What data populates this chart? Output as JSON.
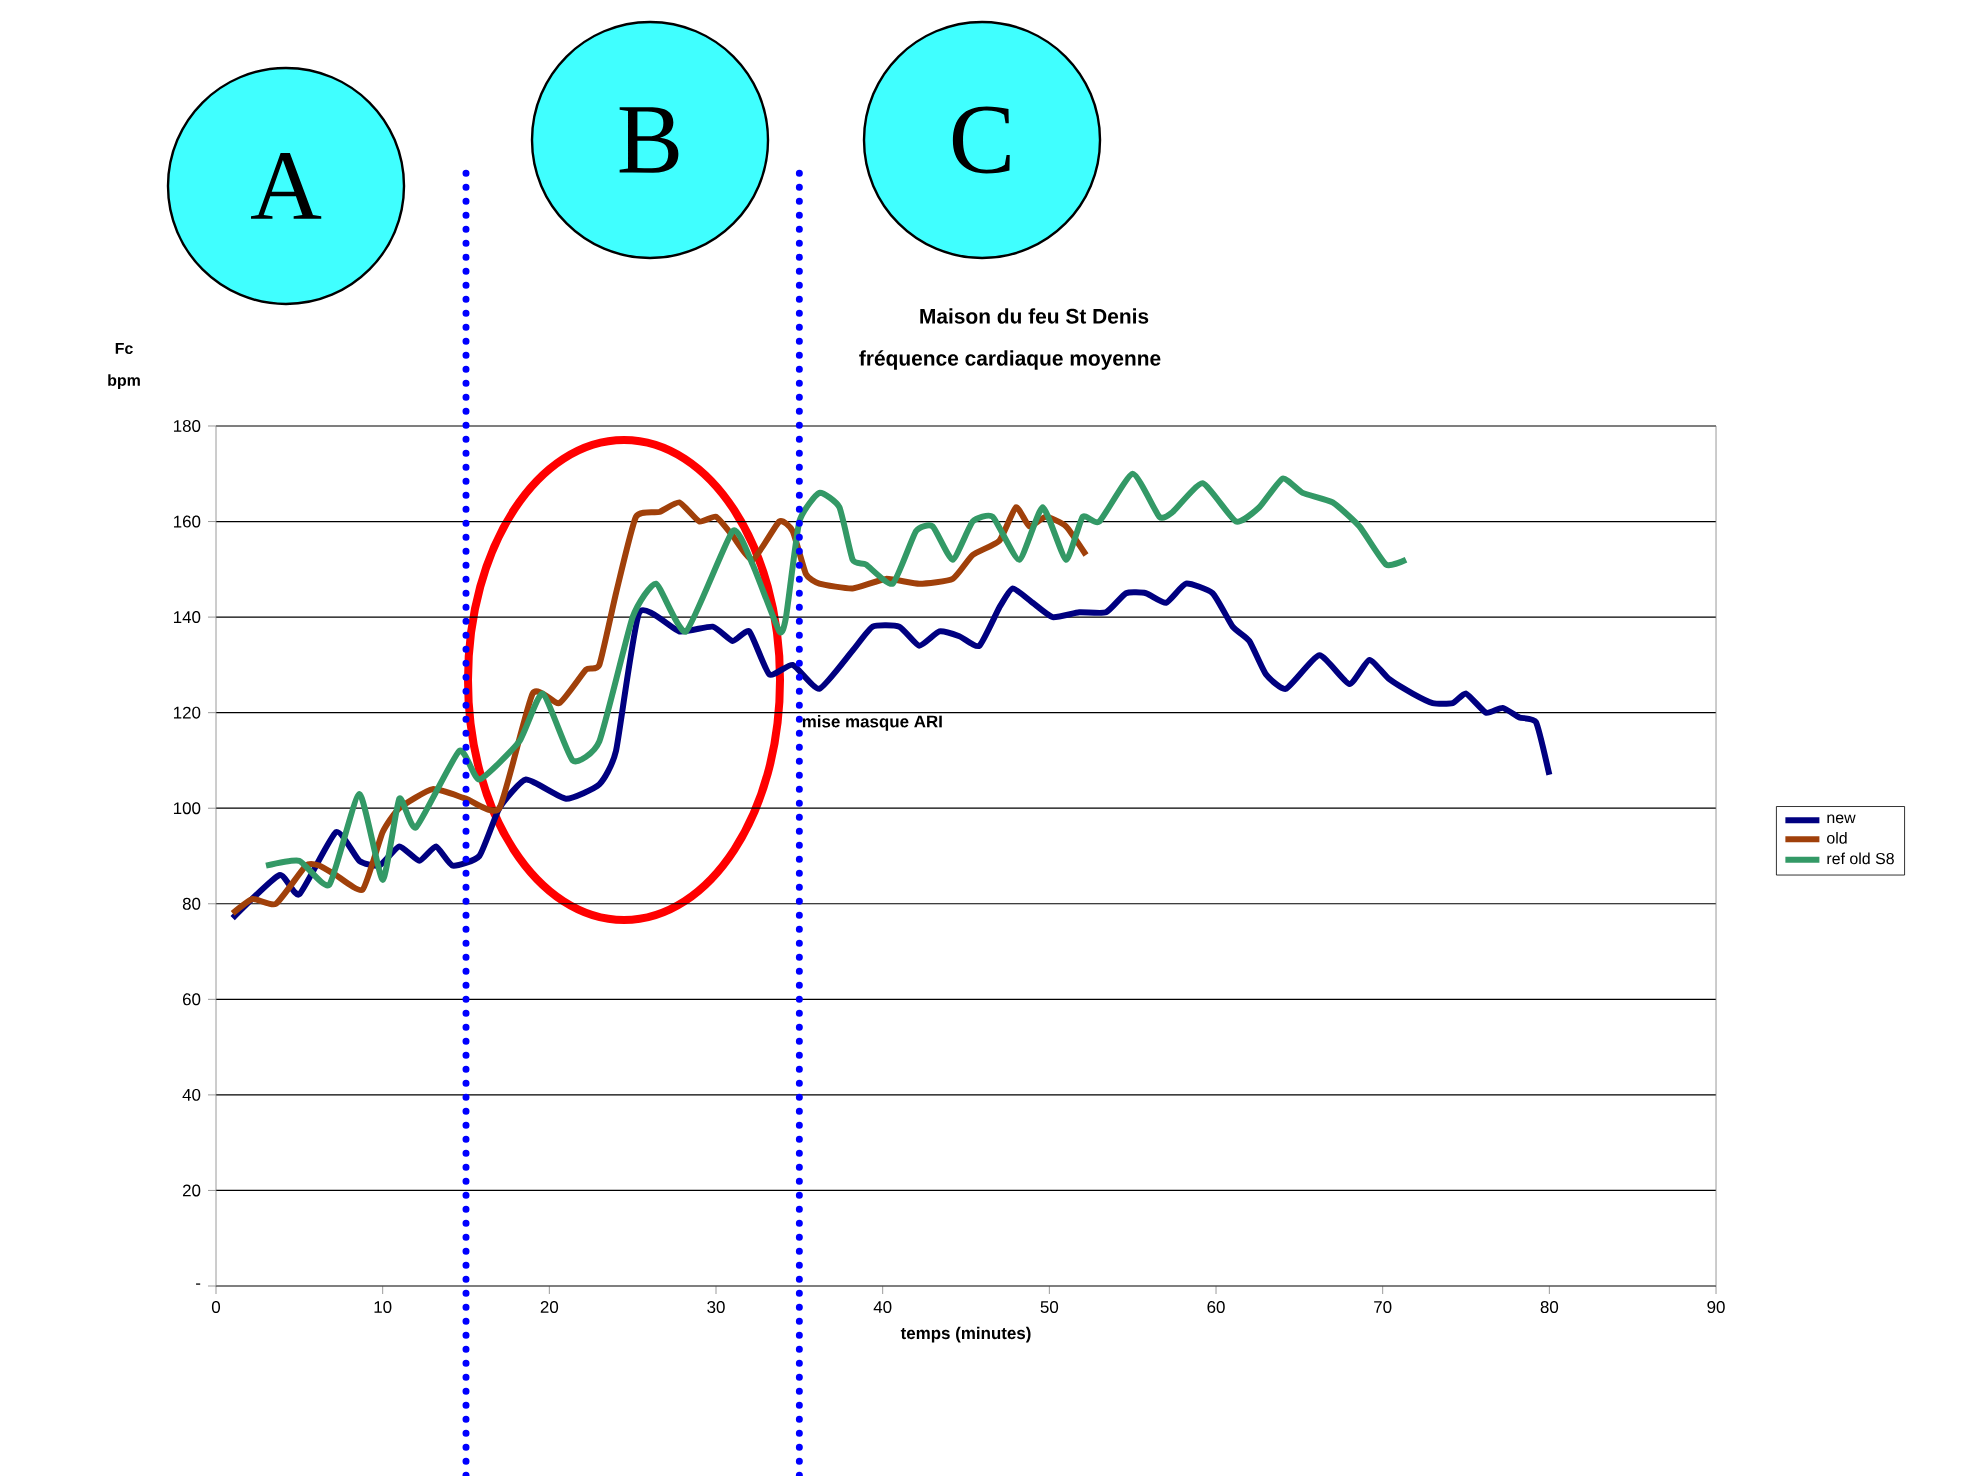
{
  "chart_data": {
    "type": "line",
    "title": "Maison du feu St Denis",
    "subtitle": "fréquence cardiaque moyenne",
    "xlabel": "temps (minutes)",
    "ylabel": "Fc bpm",
    "xlim": [
      0,
      90
    ],
    "xticks": [
      0,
      10,
      20,
      30,
      40,
      50,
      60,
      70,
      80,
      90
    ],
    "ylim": [
      0,
      180
    ],
    "yticks": [
      {
        "value": 0,
        "label": "-"
      },
      20,
      40,
      60,
      80,
      100,
      120,
      140,
      160,
      180
    ],
    "grid": "y",
    "legend": "right",
    "series": [
      {
        "name": "new",
        "color": "#000080",
        "x": [
          1,
          3.8,
          5,
          7.2,
          8.6,
          9.8,
          11,
          12.2,
          13.2,
          14.2,
          15.8,
          17,
          18.6,
          21,
          23,
          24,
          25.4,
          27.8,
          29.8,
          31,
          32,
          33.2,
          34.6,
          36.2,
          38.2,
          39.4,
          41,
          42.2,
          43.4,
          44.6,
          45.8,
          47,
          47.8,
          49,
          50.2,
          51.8,
          53.4,
          54.6,
          55.8,
          57,
          58.2,
          59.8,
          61,
          62,
          63,
          64.2,
          66.2,
          68,
          69.2,
          70.4,
          71.8,
          73,
          74.2,
          75,
          76.2,
          77.2,
          78.2,
          79.2,
          80
        ],
        "values": [
          77,
          86,
          82,
          95,
          89,
          88,
          92,
          89,
          92,
          88,
          90,
          100,
          106,
          102,
          105,
          112,
          141,
          137,
          138,
          135,
          137,
          128,
          130,
          125,
          133,
          138,
          138,
          134,
          137,
          136,
          134,
          142,
          146,
          143,
          140,
          141,
          141,
          145,
          145,
          143,
          147,
          145,
          138,
          135,
          128,
          125,
          132,
          126,
          131,
          127,
          124,
          122,
          122,
          124,
          120,
          121,
          119,
          118,
          107
        ]
      },
      {
        "name": "old",
        "color": "#a0400a",
        "x": [
          1,
          2.2,
          3.6,
          5.4,
          6.2,
          7.2,
          8.8,
          10,
          11,
          13,
          15,
          17,
          19,
          20.6,
          22.2,
          23,
          24,
          25.2,
          26.6,
          27.8,
          29,
          30,
          31,
          32.2,
          33.8,
          34.6,
          35.4,
          36.2,
          38.2,
          40.2,
          42.2,
          44.2,
          45.4,
          47,
          48,
          48.8,
          49.8,
          51,
          52.2
        ],
        "values": [
          78,
          81,
          80,
          88,
          88,
          86,
          83,
          95,
          100,
          104,
          102,
          100,
          124,
          122,
          129,
          130,
          145,
          161,
          162,
          164,
          160,
          161,
          157,
          152,
          160,
          158,
          149,
          147,
          146,
          148,
          147,
          148,
          153,
          156,
          163,
          159,
          161,
          159,
          153
        ]
      },
      {
        "name": "ref old S8",
        "color": "#339966",
        "x": [
          3,
          5,
          6.8,
          8.6,
          10,
          11,
          12,
          14.6,
          15.8,
          18.2,
          19.6,
          21.4,
          23,
          25,
          26.4,
          28.2,
          31,
          32.2,
          33.8,
          34.2,
          35,
          36.2,
          37.4,
          38.2,
          39,
          40.6,
          42,
          43,
          44.2,
          45.4,
          46.6,
          48.2,
          49.6,
          51,
          52,
          53,
          55,
          56.6,
          57.4,
          59.2,
          61.2,
          62.6,
          64,
          65.2,
          67,
          68.6,
          70.2,
          71.4
        ],
        "values": [
          88,
          89,
          84,
          103,
          85,
          102,
          96,
          112,
          106,
          114,
          124,
          110,
          114,
          140,
          147,
          137,
          158,
          151,
          137,
          140,
          160,
          166,
          163,
          152,
          151,
          147,
          158,
          159,
          152,
          160,
          161,
          152,
          163,
          152,
          161,
          160,
          170,
          161,
          162,
          168,
          160,
          163,
          169,
          166,
          164,
          159,
          151,
          152
        ]
      }
    ],
    "ref_lines": [
      {
        "axis": "x",
        "value": 15,
        "color": "#0000ff",
        "line_style": "dotted"
      },
      {
        "axis": "x",
        "value": 35,
        "color": "#0000ff",
        "line_style": "dotted"
      }
    ],
    "annotations": [
      "A",
      "B",
      "C",
      {
        "text": "mise masque ARI",
        "x": 35,
        "y": 120
      }
    ]
  }
}
